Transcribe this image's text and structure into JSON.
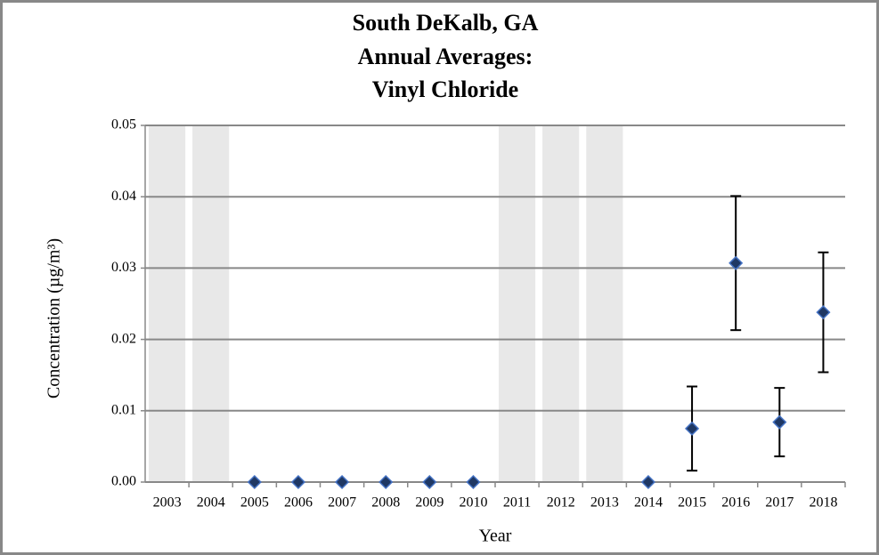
{
  "chart_data": {
    "type": "scatter",
    "title": [
      "South DeKalb, GA",
      "Annual Averages:",
      "Vinyl Chloride"
    ],
    "x_label": "Year",
    "y_label": "Concentration (µg/m³)",
    "categories": [
      "2003",
      "2004",
      "2005",
      "2006",
      "2007",
      "2008",
      "2009",
      "2010",
      "2011",
      "2012",
      "2013",
      "2014",
      "2015",
      "2016",
      "2017",
      "2018"
    ],
    "values": [
      null,
      null,
      0,
      0,
      0,
      0,
      0,
      0,
      null,
      null,
      null,
      0,
      0.0075,
      0.0307,
      0.0084,
      0.0238
    ],
    "errors": [
      null,
      null,
      null,
      null,
      null,
      null,
      null,
      null,
      null,
      null,
      null,
      null,
      0.0059,
      0.0094,
      0.0048,
      0.0084
    ],
    "shaded": [
      true,
      true,
      false,
      false,
      false,
      false,
      false,
      false,
      true,
      true,
      true,
      false,
      false,
      false,
      false,
      false
    ],
    "color": "#1f3864",
    "edge_color": "#4472c4",
    "shade_color": "#e8e8e8",
    "ylim": [
      0,
      0.05
    ],
    "yticks": [
      {
        "value": 0,
        "label": "0.00"
      },
      {
        "value": 0.01,
        "label": "0.01"
      },
      {
        "value": 0.02,
        "label": "0.02"
      },
      {
        "value": 0.03,
        "label": "0.03"
      },
      {
        "value": 0.04,
        "label": "0.04"
      },
      {
        "value": 0.05,
        "label": "0.05"
      }
    ],
    "grid": true
  }
}
